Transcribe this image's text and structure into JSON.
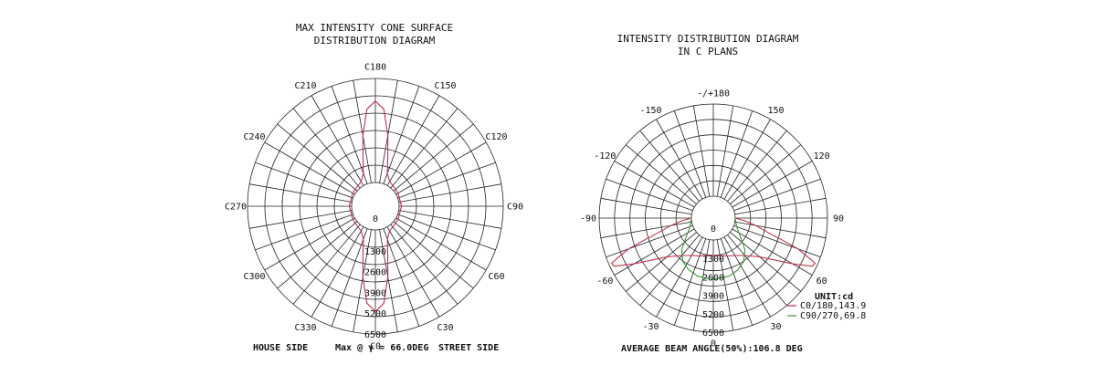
{
  "chart_data": [
    {
      "type": "polar",
      "title_line1": "MAX INTENSITY CONE SURFACE",
      "title_line2": "DISTRIBUTION DIAGRAM",
      "angle_labels": [
        {
          "text": "C0",
          "deg": 0
        },
        {
          "text": "C30",
          "deg": 30
        },
        {
          "text": "C60",
          "deg": 60
        },
        {
          "text": "C90",
          "deg": 90
        },
        {
          "text": "C120",
          "deg": 120
        },
        {
          "text": "C150",
          "deg": 150
        },
        {
          "text": "C180",
          "deg": 180
        },
        {
          "text": "C210",
          "deg": 210
        },
        {
          "text": "C240",
          "deg": 240
        },
        {
          "text": "C270",
          "deg": 270
        },
        {
          "text": "C300",
          "deg": 300
        },
        {
          "text": "C330",
          "deg": 330
        }
      ],
      "radial_ticks": [
        "0",
        "1300",
        "2600",
        "3900",
        "5200",
        "6500"
      ],
      "rmax": 6500,
      "series": [
        {
          "color": "#c0304a",
          "points": [
            [
              0,
              5100
            ],
            [
              5,
              4600
            ],
            [
              10,
              3000
            ],
            [
              15,
              1500
            ],
            [
              20,
              700
            ],
            [
              30,
              300
            ],
            [
              45,
              180
            ],
            [
              60,
              150
            ],
            [
              90,
              150
            ],
            [
              120,
              150
            ],
            [
              135,
              180
            ],
            [
              150,
              300
            ],
            [
              160,
              700
            ],
            [
              165,
              1500
            ],
            [
              170,
              3000
            ],
            [
              175,
              4600
            ],
            [
              180,
              5100
            ],
            [
              185,
              4600
            ],
            [
              190,
              3000
            ],
            [
              195,
              1500
            ],
            [
              200,
              700
            ],
            [
              210,
              300
            ],
            [
              225,
              180
            ],
            [
              240,
              150
            ],
            [
              270,
              150
            ],
            [
              300,
              150
            ],
            [
              315,
              180
            ],
            [
              330,
              300
            ],
            [
              340,
              700
            ],
            [
              345,
              1500
            ],
            [
              350,
              3000
            ],
            [
              355,
              4600
            ],
            [
              360,
              5100
            ]
          ]
        }
      ],
      "footer_left": "HOUSE SIDE",
      "footer_mid": "Max @ γ = 66.0DEG",
      "footer_right": "STREET SIDE"
    },
    {
      "type": "polar",
      "title_line1": "INTENSITY DISTRIBUTION DIAGRAM",
      "title_line2": "IN C PLANS",
      "angle_labels": [
        {
          "text": "0",
          "deg": 0
        },
        {
          "text": "30",
          "deg": 30
        },
        {
          "text": "60",
          "deg": 60
        },
        {
          "text": "90",
          "deg": 90
        },
        {
          "text": "120",
          "deg": 120
        },
        {
          "text": "150",
          "deg": 150
        },
        {
          "text": "-/+180",
          "deg": 180
        },
        {
          "text": "-150",
          "deg": -150
        },
        {
          "text": "-120",
          "deg": -120
        },
        {
          "text": "-90",
          "deg": -90
        },
        {
          "text": "-60",
          "deg": -60
        },
        {
          "text": "-30",
          "deg": -30
        }
      ],
      "radial_ticks": [
        "0",
        "1300",
        "2600",
        "3900",
        "5200",
        "6500"
      ],
      "rmax": 6500,
      "series": [
        {
          "name": "C0/180,143.9",
          "color": "#c0304a",
          "points": [
            [
              -90,
              0
            ],
            [
              -85,
              700
            ],
            [
              -80,
              1500
            ],
            [
              -75,
              2500
            ],
            [
              -72,
              3700
            ],
            [
              -70,
              4800
            ],
            [
              -67,
              5900
            ],
            [
              -66,
              6300
            ],
            [
              -64,
              6200
            ],
            [
              -60,
              4900
            ],
            [
              -50,
              2700
            ],
            [
              -40,
              1900
            ],
            [
              -30,
              1500
            ],
            [
              -20,
              1300
            ],
            [
              -10,
              1150
            ],
            [
              0,
              1100
            ],
            [
              10,
              1150
            ],
            [
              20,
              1300
            ],
            [
              30,
              1500
            ],
            [
              40,
              1900
            ],
            [
              50,
              2700
            ],
            [
              60,
              4900
            ],
            [
              64,
              6200
            ],
            [
              66,
              6300
            ],
            [
              67,
              5900
            ],
            [
              70,
              4800
            ],
            [
              72,
              3700
            ],
            [
              75,
              2500
            ],
            [
              80,
              1500
            ],
            [
              85,
              700
            ],
            [
              90,
              0
            ]
          ]
        },
        {
          "name": "C90/270,69.8",
          "color": "#3a9a3a",
          "points": [
            [
              -90,
              0
            ],
            [
              -70,
              200
            ],
            [
              -55,
              800
            ],
            [
              -45,
              1600
            ],
            [
              -35,
              2200
            ],
            [
              -25,
              2500
            ],
            [
              -15,
              2700
            ],
            [
              0,
              2800
            ],
            [
              15,
              2700
            ],
            [
              25,
              2500
            ],
            [
              35,
              2200
            ],
            [
              45,
              1600
            ],
            [
              55,
              800
            ],
            [
              70,
              200
            ],
            [
              90,
              0
            ]
          ]
        }
      ],
      "unit": "UNIT:cd",
      "footer": "AVERAGE BEAM ANGLE(50%):106.8 DEG"
    }
  ]
}
